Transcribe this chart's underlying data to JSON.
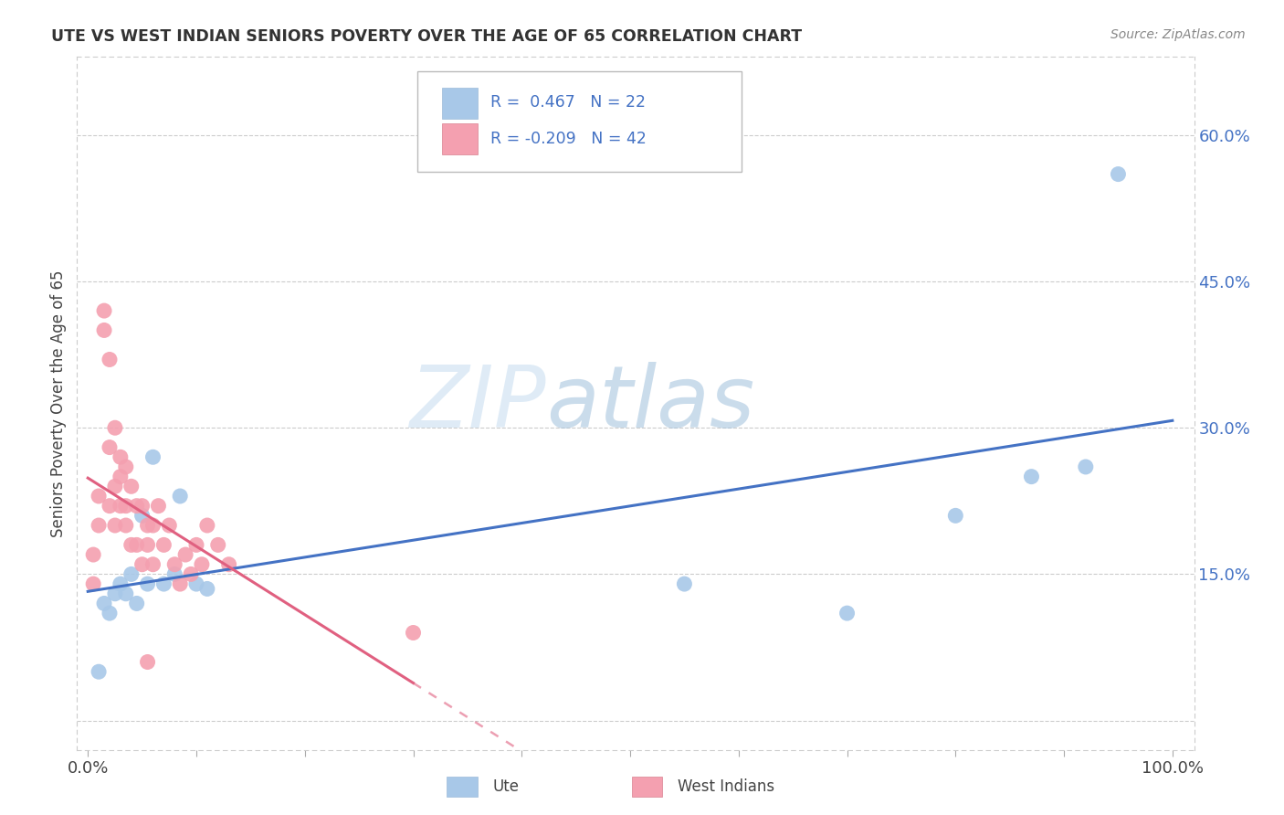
{
  "title": "UTE VS WEST INDIAN SENIORS POVERTY OVER THE AGE OF 65 CORRELATION CHART",
  "source": "Source: ZipAtlas.com",
  "ylabel": "Seniors Poverty Over the Age of 65",
  "background_color": "#ffffff",
  "watermark_zip": "ZIP",
  "watermark_atlas": "atlas",
  "ute_color": "#A8C8E8",
  "west_indian_color": "#F4A0B0",
  "ute_line_color": "#4472C4",
  "west_indian_line_color": "#E06080",
  "ute_R": 0.467,
  "ute_N": 22,
  "west_indian_R": -0.209,
  "west_indian_N": 42,
  "xlim_data": [
    0,
    100
  ],
  "ylim_data": [
    0,
    65
  ],
  "ute_x": [
    1.0,
    1.5,
    2.0,
    2.5,
    3.0,
    3.5,
    4.0,
    4.5,
    5.0,
    5.5,
    6.0,
    7.0,
    8.0,
    8.5,
    10.0,
    11.0,
    55.0,
    70.0,
    80.0,
    87.0,
    92.0,
    95.0
  ],
  "ute_y": [
    5.0,
    12.0,
    11.0,
    13.0,
    14.0,
    13.0,
    15.0,
    12.0,
    21.0,
    14.0,
    27.0,
    14.0,
    15.0,
    23.0,
    14.0,
    13.5,
    14.0,
    11.0,
    21.0,
    25.0,
    26.0,
    56.0
  ],
  "west_indian_x": [
    0.5,
    0.5,
    1.0,
    1.0,
    1.5,
    1.5,
    2.0,
    2.0,
    2.0,
    2.5,
    2.5,
    2.5,
    3.0,
    3.0,
    3.0,
    3.5,
    3.5,
    3.5,
    4.0,
    4.0,
    4.5,
    4.5,
    5.0,
    5.0,
    5.5,
    5.5,
    6.0,
    6.0,
    6.5,
    7.0,
    7.5,
    8.0,
    8.5,
    9.0,
    9.5,
    10.0,
    10.5,
    11.0,
    12.0,
    13.0,
    30.0,
    5.5
  ],
  "west_indian_y": [
    17.0,
    14.0,
    23.0,
    20.0,
    42.0,
    40.0,
    37.0,
    28.0,
    22.0,
    30.0,
    24.0,
    20.0,
    27.0,
    25.0,
    22.0,
    26.0,
    22.0,
    20.0,
    24.0,
    18.0,
    22.0,
    18.0,
    22.0,
    16.0,
    20.0,
    18.0,
    20.0,
    16.0,
    22.0,
    18.0,
    20.0,
    16.0,
    14.0,
    17.0,
    15.0,
    18.0,
    16.0,
    20.0,
    18.0,
    16.0,
    9.0,
    6.0
  ],
  "xtick_positions": [
    0,
    10,
    20,
    30,
    40,
    50,
    60,
    70,
    80,
    90,
    100
  ],
  "xtick_labels_show": [
    "0.0%",
    "",
    "",
    "",
    "",
    "",
    "",
    "",
    "",
    "",
    "100.0%"
  ],
  "ytick_positions": [
    0,
    15,
    30,
    45,
    60
  ],
  "ytick_labels": [
    "",
    "15.0%",
    "30.0%",
    "45.0%",
    "60.0%"
  ]
}
